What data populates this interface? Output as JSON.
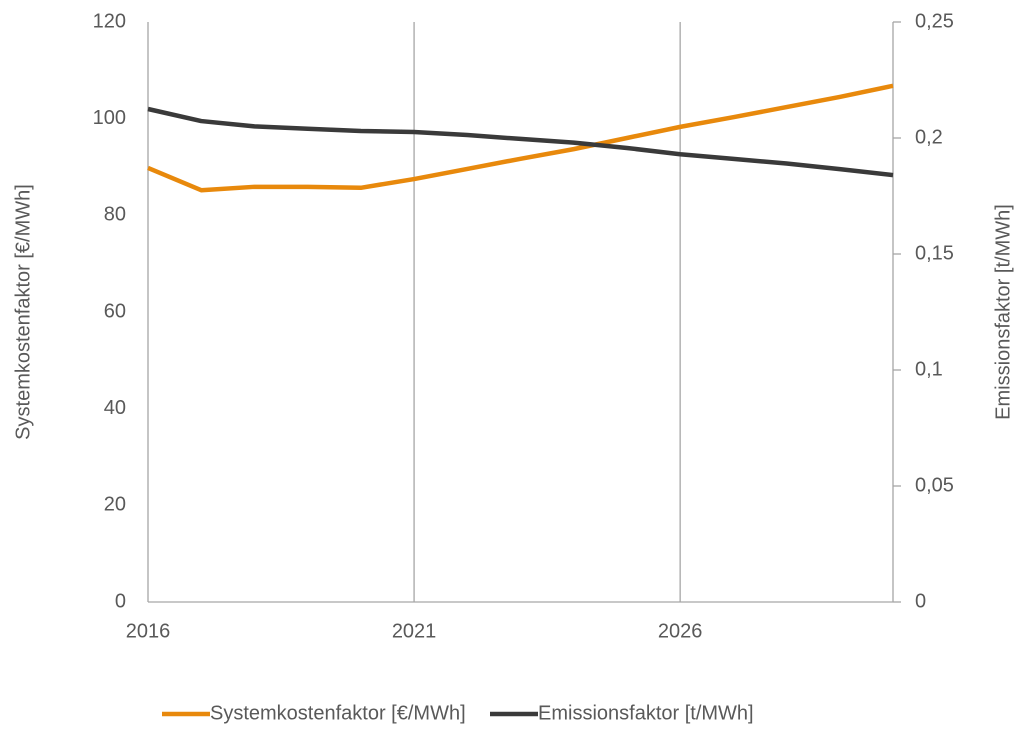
{
  "chart_data": {
    "type": "line",
    "y_label": "Systemkostenfaktor [€/MWh]",
    "y2_label": "Emissionsfaktor [t/MWh]",
    "x": [
      2016,
      2017,
      2018,
      2019,
      2020,
      2021,
      2022,
      2023,
      2024,
      2025,
      2026,
      2027,
      2028,
      2029,
      2030
    ],
    "xlim": [
      2016,
      2030
    ],
    "xticks": [
      2016,
      2021,
      2026
    ],
    "ylim": [
      0,
      120
    ],
    "yticks": [
      0,
      20,
      40,
      60,
      80,
      100,
      120
    ],
    "y2lim": [
      0,
      0.25
    ],
    "y2ticks": [
      0,
      {
        "value": 0.05,
        "label": "0,05"
      },
      {
        "value": 0.1,
        "label": "0,1"
      },
      {
        "value": 0.15,
        "label": "0,15"
      },
      {
        "value": 0.2,
        "label": "0,2"
      },
      {
        "value": 0.25,
        "label": "0,25"
      }
    ],
    "grid": true,
    "legend": "bottom",
    "series": [
      {
        "name": "Systemkostenfaktor [€/MWh]",
        "color": "#e8890c",
        "values": [
          89.8,
          85.2,
          85.9,
          85.9,
          85.7,
          87.5,
          89.6,
          91.7,
          93.7,
          96.0,
          98.3,
          100.3,
          102.4,
          104.5,
          106.8
        ]
      },
      {
        "name": "Emissionsfaktor [t/MWh]",
        "color": "#3a3a3a",
        "axis": "y2",
        "values": [
          0.2125,
          0.2073,
          0.205,
          0.204,
          0.203,
          0.2026,
          0.2013,
          0.1996,
          0.198,
          0.1957,
          0.193,
          0.191,
          0.189,
          0.1866,
          0.184
        ]
      }
    ]
  }
}
